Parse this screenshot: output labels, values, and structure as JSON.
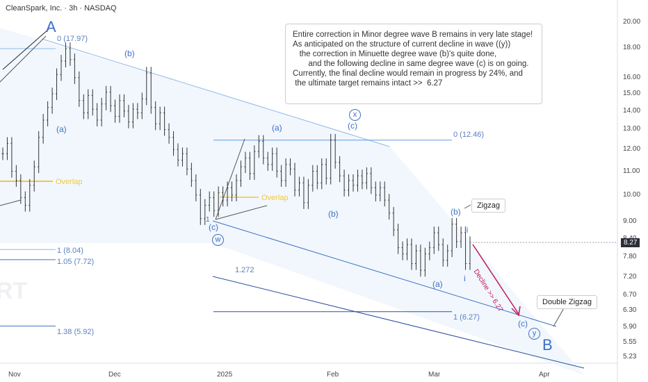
{
  "header": {
    "title": "CleanSpark, Inc. · 3h · NASDAQ"
  },
  "note": {
    "lines": [
      "Entire correction in Minor degree wave B remains in very late stage!",
      "",
      "As anticipated on the structure of current decline in wave ((y))",
      "   the correction in Minuette degree wave (b)'s quite done,",
      "       and the following decline in same degree wave (c) is on going.",
      "",
      "Currently, the final decline would remain in progress by 24%, and",
      " the ultimate target remains intact >>  6.27"
    ]
  },
  "tags": {
    "zigzag": "Zigzag",
    "double_zigzag": "Double Zigzag"
  },
  "labels": {
    "A": "A",
    "B": "B",
    "b1": "(b)",
    "a1": "(a)",
    "a2": "(a)",
    "x_circle": "x",
    "c_top": "(c)",
    "one": "1",
    "c_low": "(c)",
    "w_circle": "w",
    "b2": "(b)",
    "b3": "(b)",
    "ii": "ii",
    "i": "i",
    "a3": "(a)",
    "c_end": "(c)",
    "y_circle": "y",
    "overlap1": "Overlap",
    "overlap2": "Overlap",
    "decline": "Decline >> 6.27",
    "watermark": "RT"
  },
  "fib_labels": {
    "f0_top": "0 (17.97)",
    "f1": "1 (8.04)",
    "f105": "1.05 (7.72)",
    "f138": "1.38 (5.92)",
    "f0_mid": "0 (12.46)",
    "f1272": "1.272",
    "f1_target": "1 (6.27)"
  },
  "price_label": "8.27",
  "colors": {
    "accent": "#3d6fc4",
    "channel": "#8fb8e8",
    "decline": "#c2185b",
    "overlap": "#f2c744"
  },
  "chart_data": {
    "type": "line",
    "title": "CleanSpark, Inc. · 3h · NASDAQ",
    "xlabel": "",
    "ylabel": "",
    "x_ticks": [
      "Nov",
      "Dec",
      "2025",
      "Feb",
      "Mar",
      "Apr"
    ],
    "y_ticks": [
      20.0,
      18.0,
      16.0,
      15.0,
      14.0,
      13.0,
      12.0,
      11.0,
      10.0,
      9.0,
      8.4,
      7.8,
      7.2,
      6.7,
      6.3,
      5.9,
      5.55,
      5.23
    ],
    "y_scale": "log",
    "ylim": [
      5.1,
      21.0
    ],
    "current_price": 8.27,
    "fib_levels": [
      {
        "label": "0",
        "value": 17.97
      },
      {
        "label": "1",
        "value": 8.04
      },
      {
        "label": "1.05",
        "value": 7.72
      },
      {
        "label": "1.38",
        "value": 5.92
      },
      {
        "label": "0",
        "value": 12.46
      },
      {
        "label": "1",
        "value": 6.27
      }
    ],
    "series": [
      {
        "values": [
          11.8,
          12.3,
          11.0,
          10.6,
          9.9,
          9.6,
          10.4,
          11.2,
          12.6,
          13.5,
          14.2,
          15.0,
          16.2,
          17.1,
          17.97,
          17.2,
          16.0,
          14.6,
          13.9,
          14.9,
          14.1,
          13.5,
          14.4,
          15.1,
          14.3,
          13.7,
          14.6,
          14.0,
          13.4,
          14.1,
          13.9,
          14.7,
          16.3,
          14.2,
          13.3,
          13.9,
          13.0,
          12.6,
          12.0,
          11.5,
          11.8,
          11.1,
          10.6,
          10.0,
          9.1,
          9.6,
          9.9,
          9.4,
          10.1,
          9.8,
          10.3,
          10.0,
          10.6,
          11.2,
          11.6,
          10.9,
          11.9,
          12.4,
          11.6,
          11.3,
          11.8,
          11.0,
          10.6,
          11.3,
          11.1,
          10.2,
          10.5,
          9.7,
          10.4,
          11.0,
          10.5,
          11.3,
          10.7,
          12.46,
          11.4,
          10.8,
          10.2,
          10.6,
          10.4,
          10.8,
          10.5,
          10.9,
          10.3,
          10.0,
          10.3,
          9.8,
          9.3,
          8.7,
          8.1,
          7.9,
          8.2,
          7.6,
          8.0,
          7.4,
          7.9,
          8.1,
          8.6,
          8.2,
          7.7,
          8.0,
          8.9,
          8.3,
          8.6,
          7.6,
          8.27
        ]
      }
    ]
  }
}
